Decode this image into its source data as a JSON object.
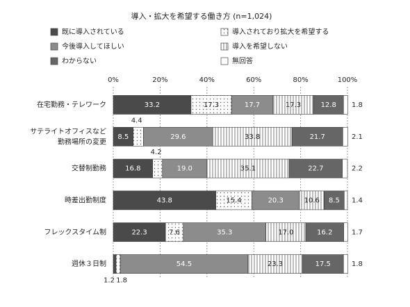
{
  "chart_data": {
    "type": "stacked-bar-horizontal",
    "title": "導入・拡大を希望する働き方 (n=1,024)",
    "categories": [
      "在宅勤務・テレワーク",
      "サテライトオフィスなど\n勤務場所の変更",
      "交替制勤務",
      "時差出勤制度",
      "フレックスタイム制",
      "週休３日制"
    ],
    "series": [
      {
        "name": "既に導入されている",
        "color": "#4a4a4a",
        "values": [
          33.2,
          8.5,
          16.8,
          43.8,
          22.3,
          1.2
        ],
        "value_labels": [
          "33.2",
          "8.5",
          "16.8",
          "43.8",
          "22.3",
          "1.2"
        ]
      },
      {
        "name": "導入されており拡大を希望する",
        "color": "#ffffff",
        "pattern": "dots",
        "values": [
          17.3,
          4.4,
          4.2,
          15.4,
          7.6,
          1.8
        ],
        "value_labels": [
          "17.3",
          "4.4",
          "4.2",
          "15.4",
          "7.6",
          "1.8"
        ]
      },
      {
        "name": "今後導入してほしい",
        "color": "#8c8c8c",
        "values": [
          17.7,
          29.6,
          19.0,
          20.3,
          35.3,
          54.5
        ],
        "value_labels": [
          "17.7",
          "29.6",
          "19.0",
          "20.3",
          "35.3",
          "54.5"
        ]
      },
      {
        "name": "導入を希望しない",
        "color": "#ffffff",
        "pattern": "vertical-lines",
        "values": [
          17.3,
          33.8,
          35.1,
          10.6,
          17.0,
          23.3
        ],
        "value_labels": [
          "17.3",
          "33.8",
          "35.1",
          "10.6",
          "17.0",
          "23.3"
        ]
      },
      {
        "name": "わからない",
        "color": "#666666",
        "values": [
          12.8,
          21.7,
          22.7,
          8.5,
          16.2,
          17.5
        ],
        "value_labels": [
          "12.8",
          "21.7",
          "22.7",
          "8.5",
          "16.2",
          "17.5"
        ]
      },
      {
        "name": "無回答",
        "color": "#ffffff",
        "values": [
          1.8,
          2.1,
          2.2,
          1.4,
          1.7,
          1.8
        ],
        "value_labels": [
          "1.8",
          "2.1",
          "2.2",
          "1.4",
          "1.7",
          "1.8"
        ]
      }
    ],
    "xlim": [
      0,
      100
    ],
    "xticks": [
      {
        "value": 0,
        "label": "0%"
      },
      {
        "value": 20,
        "label": "20%"
      },
      {
        "value": 40,
        "label": "40%"
      },
      {
        "value": 60,
        "label": "60%"
      },
      {
        "value": 80,
        "label": "80%"
      },
      {
        "value": 100,
        "label": "100%"
      }
    ],
    "grid": true
  }
}
